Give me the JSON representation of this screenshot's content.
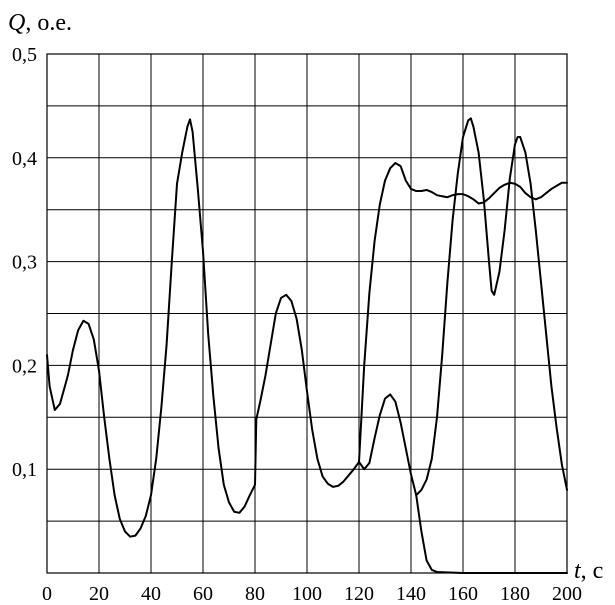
{
  "chart_data": {
    "type": "line",
    "title": "",
    "xlabel": {
      "var": "t",
      "unit": ", с"
    },
    "ylabel": {
      "var": "Q",
      "unit": ", о.е."
    },
    "xlim": [
      0,
      200
    ],
    "ylim": [
      0,
      0.5
    ],
    "grid": true,
    "legend": "none",
    "x_ticks": [
      0,
      20,
      40,
      60,
      80,
      100,
      120,
      140,
      160,
      180,
      200
    ],
    "x_tick_labels": [
      "0",
      "20",
      "40",
      "60",
      "80",
      "100",
      "120",
      "140",
      "160",
      "180",
      "200"
    ],
    "y_ticks": [
      0.1,
      0.2,
      0.3,
      0.4,
      0.5
    ],
    "y_tick_labels": [
      "0,1",
      "0,2",
      "0,3",
      "0,4",
      "0,5"
    ],
    "x_grid": [
      0,
      20,
      40,
      60,
      80,
      100,
      120,
      140,
      160,
      180,
      200
    ],
    "y_grid": [
      0,
      0.05,
      0.1,
      0.15,
      0.2,
      0.25,
      0.3,
      0.35,
      0.4,
      0.45,
      0.5
    ],
    "series": [
      {
        "color": "#000000",
        "points": [
          [
            0,
            0.21
          ],
          [
            1,
            0.18
          ],
          [
            3,
            0.157
          ],
          [
            5,
            0.163
          ],
          [
            8,
            0.19
          ],
          [
            10,
            0.215
          ],
          [
            12,
            0.234
          ],
          [
            14,
            0.243
          ],
          [
            16,
            0.24
          ],
          [
            18,
            0.225
          ],
          [
            20,
            0.195
          ],
          [
            22,
            0.15
          ],
          [
            24,
            0.11
          ],
          [
            26,
            0.075
          ],
          [
            28,
            0.052
          ],
          [
            30,
            0.04
          ],
          [
            32,
            0.035
          ],
          [
            34,
            0.036
          ],
          [
            36,
            0.043
          ],
          [
            38,
            0.055
          ],
          [
            40,
            0.075
          ],
          [
            42,
            0.11
          ],
          [
            44,
            0.16
          ],
          [
            46,
            0.22
          ],
          [
            48,
            0.3
          ],
          [
            50,
            0.375
          ],
          [
            52,
            0.405
          ],
          [
            54,
            0.43
          ],
          [
            55,
            0.437
          ],
          [
            56,
            0.425
          ],
          [
            58,
            0.37
          ],
          [
            60,
            0.31
          ],
          [
            62,
            0.23
          ],
          [
            64,
            0.17
          ],
          [
            66,
            0.12
          ],
          [
            68,
            0.085
          ],
          [
            70,
            0.068
          ],
          [
            72,
            0.059
          ],
          [
            74,
            0.058
          ],
          [
            76,
            0.064
          ],
          [
            78,
            0.075
          ],
          [
            80,
            0.085
          ],
          [
            80.5,
            0.148
          ],
          [
            82,
            0.165
          ],
          [
            84,
            0.19
          ],
          [
            86,
            0.22
          ],
          [
            88,
            0.25
          ],
          [
            90,
            0.265
          ],
          [
            92,
            0.268
          ],
          [
            94,
            0.262
          ],
          [
            96,
            0.245
          ],
          [
            98,
            0.215
          ],
          [
            100,
            0.175
          ],
          [
            102,
            0.138
          ],
          [
            104,
            0.11
          ],
          [
            106,
            0.093
          ],
          [
            108,
            0.086
          ],
          [
            110,
            0.083
          ],
          [
            112,
            0.084
          ],
          [
            114,
            0.088
          ],
          [
            116,
            0.094
          ],
          [
            118,
            0.1
          ],
          [
            120,
            0.107
          ],
          [
            122,
            0.1
          ],
          [
            124,
            0.106
          ],
          [
            126,
            0.13
          ],
          [
            128,
            0.152
          ],
          [
            130,
            0.168
          ],
          [
            132,
            0.172
          ],
          [
            134,
            0.165
          ],
          [
            136,
            0.145
          ],
          [
            138,
            0.12
          ],
          [
            140,
            0.095
          ],
          [
            142,
            0.075
          ],
          [
            144,
            0.04
          ],
          [
            146,
            0.012
          ],
          [
            148,
            0.003
          ],
          [
            150,
            0.001
          ],
          [
            160,
            0.0
          ],
          [
            170,
            0.0
          ],
          [
            180,
            0.0
          ],
          [
            190,
            0.0
          ],
          [
            200,
            0.0
          ]
        ]
      },
      {
        "color": "#000000",
        "points": [
          [
            120,
            0.107
          ],
          [
            122,
            0.2
          ],
          [
            124,
            0.27
          ],
          [
            126,
            0.32
          ],
          [
            128,
            0.355
          ],
          [
            130,
            0.378
          ],
          [
            132,
            0.39
          ],
          [
            134,
            0.395
          ],
          [
            136,
            0.392
          ],
          [
            138,
            0.378
          ],
          [
            140,
            0.37
          ],
          [
            142,
            0.368
          ],
          [
            144,
            0.368
          ],
          [
            146,
            0.369
          ],
          [
            148,
            0.367
          ],
          [
            150,
            0.364
          ],
          [
            152,
            0.363
          ],
          [
            154,
            0.362
          ],
          [
            156,
            0.364
          ],
          [
            158,
            0.365
          ],
          [
            160,
            0.365
          ],
          [
            162,
            0.363
          ],
          [
            164,
            0.36
          ],
          [
            166,
            0.356
          ],
          [
            168,
            0.357
          ],
          [
            170,
            0.361
          ],
          [
            172,
            0.366
          ],
          [
            174,
            0.371
          ],
          [
            176,
            0.374
          ],
          [
            178,
            0.376
          ],
          [
            180,
            0.375
          ],
          [
            182,
            0.372
          ],
          [
            184,
            0.366
          ],
          [
            186,
            0.362
          ],
          [
            188,
            0.36
          ],
          [
            190,
            0.362
          ],
          [
            192,
            0.366
          ],
          [
            194,
            0.37
          ],
          [
            196,
            0.373
          ],
          [
            198,
            0.376
          ],
          [
            200,
            0.376
          ]
        ]
      },
      {
        "color": "#000000",
        "points": [
          [
            142,
            0.075
          ],
          [
            144,
            0.08
          ],
          [
            146,
            0.09
          ],
          [
            148,
            0.11
          ],
          [
            150,
            0.15
          ],
          [
            152,
            0.21
          ],
          [
            154,
            0.28
          ],
          [
            156,
            0.34
          ],
          [
            158,
            0.385
          ],
          [
            160,
            0.42
          ],
          [
            162,
            0.436
          ],
          [
            163,
            0.438
          ],
          [
            164,
            0.43
          ],
          [
            166,
            0.405
          ],
          [
            168,
            0.36
          ],
          [
            170,
            0.3
          ],
          [
            171,
            0.272
          ],
          [
            172,
            0.268
          ],
          [
            174,
            0.29
          ],
          [
            176,
            0.33
          ],
          [
            178,
            0.38
          ],
          [
            180,
            0.413
          ],
          [
            181,
            0.42
          ],
          [
            182,
            0.42
          ],
          [
            184,
            0.405
          ],
          [
            186,
            0.375
          ],
          [
            188,
            0.33
          ],
          [
            190,
            0.28
          ],
          [
            192,
            0.23
          ],
          [
            194,
            0.18
          ],
          [
            196,
            0.14
          ],
          [
            198,
            0.105
          ],
          [
            200,
            0.08
          ]
        ]
      }
    ]
  }
}
